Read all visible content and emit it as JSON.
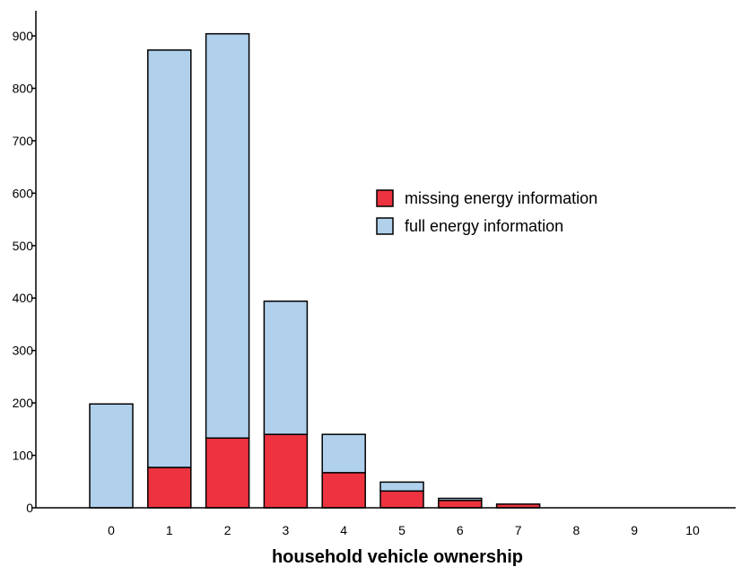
{
  "chart_data": {
    "type": "bar",
    "stacked": true,
    "categories": [
      "0",
      "1",
      "2",
      "3",
      "4",
      "5",
      "6",
      "7",
      "8",
      "9",
      "10"
    ],
    "series": [
      {
        "name": "missing energy information",
        "color": "#ee3340",
        "values": [
          0,
          77,
          133,
          140,
          67,
          32,
          14,
          7,
          0,
          0,
          0
        ]
      },
      {
        "name": "full energy information",
        "color": "#b0d0ec",
        "values": [
          198,
          796,
          771,
          254,
          73,
          17,
          4,
          0,
          0,
          0,
          0
        ]
      }
    ],
    "xlabel": "household vehicle ownership",
    "ylabel": "",
    "ylim": [
      0,
      900
    ],
    "yticks": [
      0,
      100,
      200,
      300,
      400,
      500,
      600,
      700,
      800,
      900
    ],
    "grid": false,
    "legend_position": "center-right"
  }
}
